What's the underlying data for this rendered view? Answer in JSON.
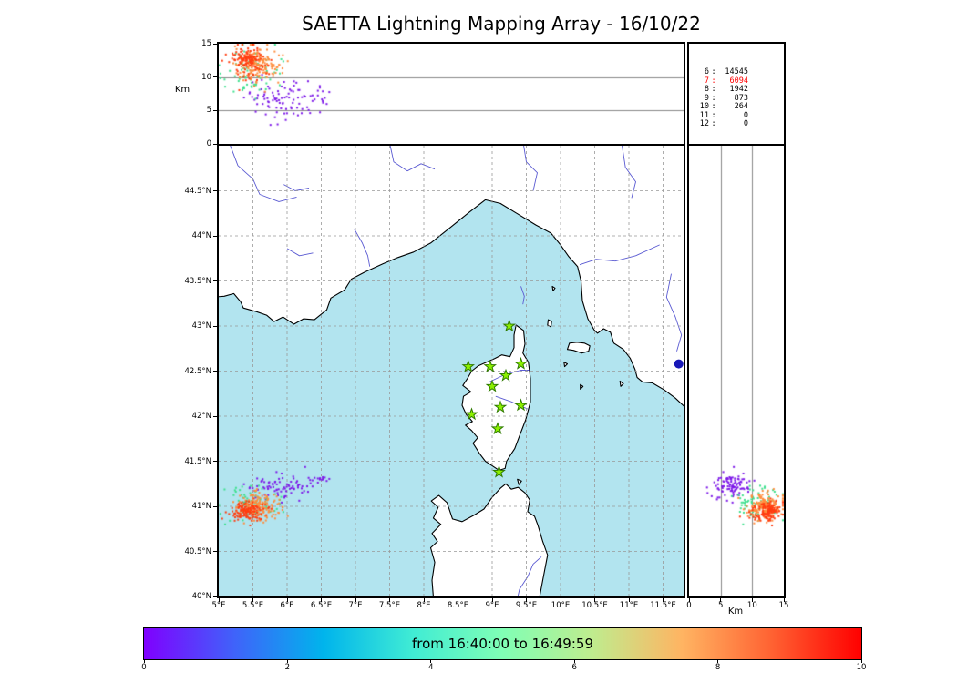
{
  "chart_data": {
    "type": "scatter",
    "title": "SAETTA Lightning Mapping Array - 16/10/22",
    "time_window_label": "from 16:40:00 to 16:49:59",
    "panels": {
      "top": "altitude (km) vs longitude",
      "main": "map longitude vs latitude",
      "right": "altitude (km) vs latitude"
    },
    "colorbar": {
      "range": [
        0,
        10
      ],
      "tick_labels": [
        "0",
        "2",
        "4",
        "6",
        "8",
        "10"
      ],
      "gradient_colors": [
        "#8000ff",
        "#4062fa",
        "#00b4ec",
        "#40ecd4",
        "#80ffb5",
        "#bfec8e",
        "#ffb462",
        "#ff6232",
        "#ff0000"
      ]
    },
    "altitude_axis": {
      "label": "Km",
      "range_km": [
        0,
        15
      ],
      "tick_labels": [
        "0",
        "5",
        "10",
        "15"
      ]
    },
    "map_axes": {
      "lon_range_deg": [
        5.0,
        11.8
      ],
      "lat_range_deg": [
        40.0,
        45.0
      ],
      "lon_tick_values": [
        5,
        5.5,
        6,
        6.5,
        7,
        7.5,
        8,
        8.5,
        9,
        9.5,
        10,
        10.5,
        11,
        11.5
      ],
      "lon_tick_labels": [
        "5°E",
        "5.5°E",
        "6°E",
        "6.5°E",
        "7°E",
        "7.5°E",
        "8°E",
        "8.5°E",
        "9°E",
        "9.5°E",
        "10°E",
        "10.5°E",
        "11°E",
        "11.5°E"
      ],
      "lat_tick_values": [
        40,
        40.5,
        41,
        41.5,
        42,
        42.5,
        43,
        43.5,
        44,
        44.5
      ],
      "lat_tick_labels": [
        "40°N",
        "40.5°N",
        "41°N",
        "41.5°N",
        "42°N",
        "42.5°N",
        "43°N",
        "43.5°N",
        "44°N",
        "44.5°N"
      ]
    },
    "station_source_counts": [
      {
        "min_stations": "6",
        "count": "14545",
        "highlighted": false
      },
      {
        "min_stations": "7",
        "count": "6094",
        "highlighted": true
      },
      {
        "min_stations": "8",
        "count": "1942",
        "highlighted": false
      },
      {
        "min_stations": "9",
        "count": "873",
        "highlighted": false
      },
      {
        "min_stations": "10",
        "count": "264",
        "highlighted": false
      },
      {
        "min_stations": "11",
        "count": "0",
        "highlighted": false
      },
      {
        "min_stations": "12",
        "count": "0",
        "highlighted": false
      }
    ],
    "lma_stations_lonlat": [
      [
        9.25,
        43.0
      ],
      [
        8.65,
        42.55
      ],
      [
        8.97,
        42.55
      ],
      [
        9.42,
        42.58
      ],
      [
        9.2,
        42.45
      ],
      [
        9.0,
        42.33
      ],
      [
        8.7,
        42.02
      ],
      [
        9.12,
        42.1
      ],
      [
        9.42,
        42.12
      ],
      [
        9.08,
        41.86
      ],
      [
        9.1,
        41.38
      ]
    ],
    "source_clusters": [
      {
        "color": "#7d18e8",
        "n": 85,
        "lon": [
          5.92,
          0.26
        ],
        "lat": [
          41.21,
          0.07
        ],
        "alt": [
          6.8,
          1.6
        ]
      },
      {
        "color": "#7d18e8",
        "n": 14,
        "lon": [
          6.44,
          0.07
        ],
        "lat": [
          41.3,
          0.02
        ],
        "alt": [
          6.2,
          0.9
        ]
      },
      {
        "color": "#3fe08e",
        "n": 70,
        "lon": [
          5.48,
          0.2
        ],
        "lat": [
          41.03,
          0.09
        ],
        "alt": [
          10.6,
          1.7
        ]
      },
      {
        "color": "#ff8c3c",
        "n": 175,
        "lon": [
          5.55,
          0.17
        ],
        "lat": [
          41.0,
          0.08
        ],
        "alt": [
          12.0,
          1.4
        ]
      },
      {
        "color": "#ff3c10",
        "n": 130,
        "lon": [
          5.41,
          0.12
        ],
        "lat": [
          40.95,
          0.06
        ],
        "alt": [
          12.4,
          1.1
        ]
      }
    ],
    "lake_marker": {
      "lon": 11.73,
      "lat": 42.58,
      "color": "#1818b8"
    },
    "geography": {
      "land_polygons": {
        "mainland": [
          [
            4.9,
            45.2
          ],
          [
            4.9,
            43.32
          ],
          [
            5.08,
            43.33
          ],
          [
            5.22,
            43.36
          ],
          [
            5.32,
            43.27
          ],
          [
            5.36,
            43.2
          ],
          [
            5.55,
            43.16
          ],
          [
            5.7,
            43.12
          ],
          [
            5.81,
            43.05
          ],
          [
            5.94,
            43.1
          ],
          [
            6.1,
            43.02
          ],
          [
            6.24,
            43.08
          ],
          [
            6.4,
            43.07
          ],
          [
            6.58,
            43.18
          ],
          [
            6.64,
            43.31
          ],
          [
            6.84,
            43.4
          ],
          [
            6.94,
            43.52
          ],
          [
            7.14,
            43.6
          ],
          [
            7.4,
            43.69
          ],
          [
            7.62,
            43.76
          ],
          [
            7.85,
            43.82
          ],
          [
            8.1,
            43.92
          ],
          [
            8.4,
            44.1
          ],
          [
            8.66,
            44.26
          ],
          [
            8.9,
            44.4
          ],
          [
            9.12,
            44.36
          ],
          [
            9.36,
            44.25
          ],
          [
            9.64,
            44.12
          ],
          [
            9.86,
            44.03
          ],
          [
            10.0,
            43.9
          ],
          [
            10.12,
            43.77
          ],
          [
            10.25,
            43.66
          ],
          [
            10.3,
            43.5
          ],
          [
            10.32,
            43.28
          ],
          [
            10.4,
            43.08
          ],
          [
            10.49,
            42.96
          ],
          [
            10.54,
            42.92
          ],
          [
            10.63,
            42.97
          ],
          [
            10.73,
            42.93
          ],
          [
            10.78,
            42.81
          ],
          [
            10.92,
            42.74
          ],
          [
            11.02,
            42.64
          ],
          [
            11.09,
            42.52
          ],
          [
            11.12,
            42.43
          ],
          [
            11.2,
            42.38
          ],
          [
            11.34,
            42.37
          ],
          [
            11.52,
            42.29
          ],
          [
            11.68,
            42.2
          ],
          [
            11.85,
            42.08
          ],
          [
            12.0,
            41.98
          ],
          [
            12.0,
            45.2
          ]
        ],
        "corsica": [
          [
            9.35,
            43.01
          ],
          [
            9.46,
            42.95
          ],
          [
            9.48,
            42.8
          ],
          [
            9.45,
            42.7
          ],
          [
            9.53,
            42.6
          ],
          [
            9.56,
            42.42
          ],
          [
            9.56,
            42.16
          ],
          [
            9.49,
            41.96
          ],
          [
            9.41,
            41.8
          ],
          [
            9.33,
            41.64
          ],
          [
            9.27,
            41.57
          ],
          [
            9.21,
            41.5
          ],
          [
            9.19,
            41.42
          ],
          [
            9.1,
            41.4
          ],
          [
            9.0,
            41.45
          ],
          [
            8.9,
            41.5
          ],
          [
            8.82,
            41.58
          ],
          [
            8.72,
            41.7
          ],
          [
            8.79,
            41.76
          ],
          [
            8.7,
            41.84
          ],
          [
            8.61,
            41.9
          ],
          [
            8.71,
            41.94
          ],
          [
            8.62,
            42.02
          ],
          [
            8.56,
            42.12
          ],
          [
            8.58,
            42.22
          ],
          [
            8.69,
            42.27
          ],
          [
            8.57,
            42.34
          ],
          [
            8.64,
            42.42
          ],
          [
            8.7,
            42.5
          ],
          [
            8.8,
            42.56
          ],
          [
            8.92,
            42.6
          ],
          [
            9.04,
            42.64
          ],
          [
            9.14,
            42.68
          ],
          [
            9.26,
            42.66
          ],
          [
            9.32,
            42.76
          ],
          [
            9.32,
            42.9
          ]
        ],
        "sardinia": [
          [
            8.16,
            39.8
          ],
          [
            8.12,
            40.18
          ],
          [
            8.16,
            40.38
          ],
          [
            8.1,
            40.54
          ],
          [
            8.2,
            40.61
          ],
          [
            8.12,
            40.7
          ],
          [
            8.25,
            40.8
          ],
          [
            8.14,
            40.87
          ],
          [
            8.21,
            40.99
          ],
          [
            8.11,
            41.06
          ],
          [
            8.22,
            41.12
          ],
          [
            8.34,
            41.04
          ],
          [
            8.42,
            40.86
          ],
          [
            8.56,
            40.83
          ],
          [
            8.73,
            40.9
          ],
          [
            8.88,
            40.97
          ],
          [
            9.0,
            41.1
          ],
          [
            9.12,
            41.2
          ],
          [
            9.2,
            41.25
          ],
          [
            9.28,
            41.19
          ],
          [
            9.38,
            41.21
          ],
          [
            9.48,
            41.15
          ],
          [
            9.55,
            41.07
          ],
          [
            9.52,
            40.94
          ],
          [
            9.62,
            40.89
          ],
          [
            9.67,
            40.79
          ],
          [
            9.74,
            40.61
          ],
          [
            9.81,
            40.46
          ],
          [
            9.76,
            40.26
          ],
          [
            9.7,
            40.02
          ],
          [
            9.67,
            39.8
          ]
        ],
        "elba": [
          [
            10.1,
            42.74
          ],
          [
            10.13,
            42.81
          ],
          [
            10.24,
            42.82
          ],
          [
            10.35,
            42.81
          ],
          [
            10.43,
            42.78
          ],
          [
            10.41,
            42.72
          ],
          [
            10.31,
            42.7
          ],
          [
            10.19,
            42.73
          ]
        ],
        "capraia": [
          [
            9.82,
            43.07
          ],
          [
            9.87,
            43.05
          ],
          [
            9.86,
            42.99
          ],
          [
            9.81,
            43.01
          ]
        ],
        "gorgona": [
          [
            9.88,
            43.44
          ],
          [
            9.92,
            43.42
          ],
          [
            9.89,
            43.39
          ]
        ],
        "pianosa": [
          [
            10.05,
            42.6
          ],
          [
            10.1,
            42.58
          ],
          [
            10.06,
            42.55
          ]
        ],
        "montecristo": [
          [
            10.29,
            42.35
          ],
          [
            10.33,
            42.33
          ],
          [
            10.29,
            42.3
          ]
        ],
        "giglio": [
          [
            10.87,
            42.39
          ],
          [
            10.92,
            42.36
          ],
          [
            10.88,
            42.33
          ]
        ],
        "maddalena": [
          [
            9.37,
            41.3
          ],
          [
            9.43,
            41.28
          ],
          [
            9.39,
            41.24
          ]
        ]
      },
      "rivers": [
        [
          [
            5.12,
            45.1
          ],
          [
            5.28,
            44.78
          ],
          [
            5.5,
            44.63
          ],
          [
            5.6,
            44.46
          ],
          [
            5.88,
            44.38
          ],
          [
            6.14,
            44.43
          ]
        ],
        [
          [
            5.95,
            44.57
          ],
          [
            6.12,
            44.5
          ],
          [
            6.32,
            44.53
          ]
        ],
        [
          [
            6.0,
            43.86
          ],
          [
            6.18,
            43.78
          ],
          [
            6.38,
            43.81
          ]
        ],
        [
          [
            6.98,
            44.08
          ],
          [
            7.1,
            43.92
          ],
          [
            7.18,
            43.78
          ],
          [
            7.21,
            43.66
          ]
        ],
        [
          [
            7.48,
            45.1
          ],
          [
            7.56,
            44.82
          ],
          [
            7.76,
            44.72
          ],
          [
            7.96,
            44.8
          ],
          [
            8.16,
            44.74
          ]
        ],
        [
          [
            9.44,
            45.1
          ],
          [
            9.5,
            44.82
          ],
          [
            9.66,
            44.7
          ],
          [
            9.6,
            44.5
          ]
        ],
        [
          [
            10.88,
            45.1
          ],
          [
            10.95,
            44.76
          ],
          [
            11.1,
            44.6
          ],
          [
            11.04,
            44.42
          ]
        ],
        [
          [
            11.45,
            43.9
          ],
          [
            11.1,
            43.78
          ],
          [
            10.8,
            43.72
          ],
          [
            10.52,
            43.74
          ],
          [
            10.28,
            43.68
          ]
        ],
        [
          [
            11.62,
            43.58
          ],
          [
            11.55,
            43.32
          ],
          [
            11.68,
            43.1
          ],
          [
            11.77,
            42.9
          ],
          [
            11.7,
            42.72
          ]
        ],
        [
          [
            9.33,
            39.85
          ],
          [
            9.4,
            40.08
          ],
          [
            9.52,
            40.22
          ],
          [
            9.6,
            40.36
          ],
          [
            9.72,
            40.44
          ]
        ],
        [
          [
            8.96,
            42.38
          ],
          [
            9.18,
            42.46
          ],
          [
            9.42,
            42.51
          ],
          [
            9.54,
            42.51
          ]
        ],
        [
          [
            9.05,
            42.22
          ],
          [
            9.28,
            42.16
          ],
          [
            9.52,
            42.08
          ]
        ],
        [
          [
            9.42,
            43.44
          ],
          [
            9.47,
            43.33
          ],
          [
            9.45,
            43.24
          ]
        ]
      ]
    }
  },
  "style_colors": {
    "sea": "#b2e4ef",
    "land": "#ffffff",
    "coastline": "#000000",
    "river": "#5a5ad2",
    "grid": "#999999",
    "station_fill": "#8cf000",
    "station_edge": "#2f7a00",
    "highlight_red": "#ff0000"
  }
}
